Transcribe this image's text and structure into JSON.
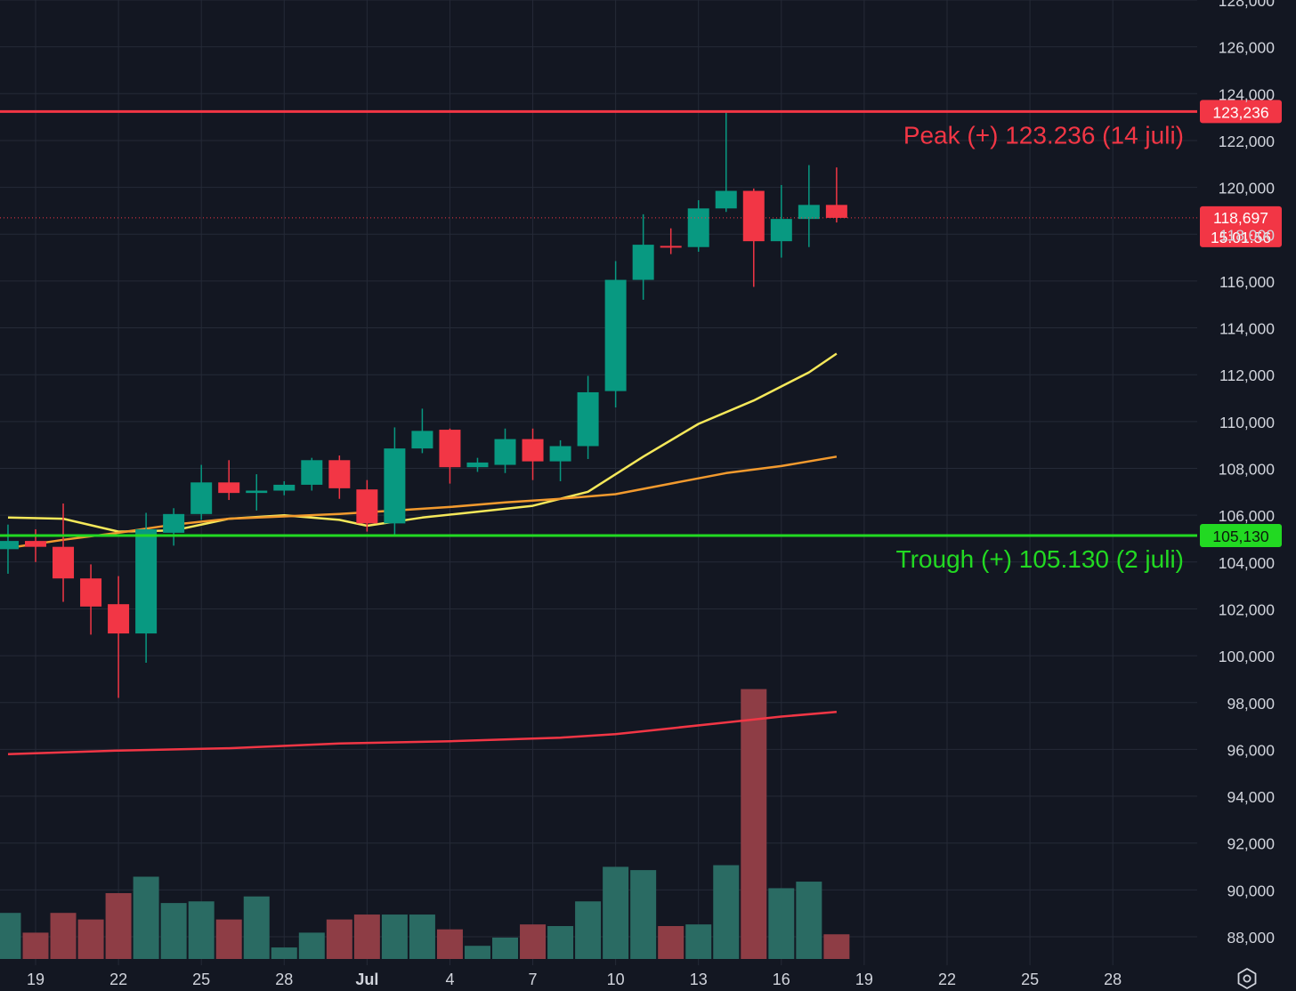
{
  "chart_data": {
    "type": "candlestick",
    "y_axis": {
      "min": 87000,
      "max": 128000,
      "ticks": [
        88000,
        90000,
        92000,
        94000,
        96000,
        98000,
        100000,
        102000,
        104000,
        106000,
        108000,
        110000,
        112000,
        114000,
        116000,
        118000,
        120000,
        122000,
        124000,
        126000,
        128000
      ],
      "tick_labels": [
        "88,000",
        "90,000",
        "92,000",
        "94,000",
        "96,000",
        "98,000",
        "100,000",
        "102,000",
        "104,000",
        "106,000",
        "108,000",
        "110,000",
        "112,000",
        "114,000",
        "116,000",
        "118,000",
        "120,000",
        "122,000",
        "124,000",
        "126,000",
        "128,000"
      ]
    },
    "x_axis": {
      "ticks": [
        {
          "date": "2025-06-19",
          "label": "19",
          "bold": false
        },
        {
          "date": "2025-06-22",
          "label": "22",
          "bold": false
        },
        {
          "date": "2025-06-25",
          "label": "25",
          "bold": false
        },
        {
          "date": "2025-06-28",
          "label": "28",
          "bold": false
        },
        {
          "date": "2025-07-01",
          "label": "Jul",
          "bold": true
        },
        {
          "date": "2025-07-04",
          "label": "4",
          "bold": false
        },
        {
          "date": "2025-07-07",
          "label": "7",
          "bold": false
        },
        {
          "date": "2025-07-10",
          "label": "10",
          "bold": false
        },
        {
          "date": "2025-07-13",
          "label": "13",
          "bold": false
        },
        {
          "date": "2025-07-16",
          "label": "16",
          "bold": false
        },
        {
          "date": "2025-07-19",
          "label": "19",
          "bold": false
        },
        {
          "date": "2025-07-22",
          "label": "22",
          "bold": false
        },
        {
          "date": "2025-07-25",
          "label": "25",
          "bold": false
        },
        {
          "date": "2025-07-28",
          "label": "28",
          "bold": false
        }
      ]
    },
    "candles": [
      {
        "date": "2025-06-18",
        "open": 104550,
        "high": 105600,
        "low": 103500,
        "close": 104900
      },
      {
        "date": "2025-06-19",
        "open": 104900,
        "high": 105400,
        "low": 104000,
        "close": 104650
      },
      {
        "date": "2025-06-20",
        "open": 104650,
        "high": 106500,
        "low": 102300,
        "close": 103300
      },
      {
        "date": "2025-06-21",
        "open": 103300,
        "high": 103900,
        "low": 100900,
        "close": 102100
      },
      {
        "date": "2025-06-22",
        "open": 102200,
        "high": 103400,
        "low": 98200,
        "close": 100950
      },
      {
        "date": "2025-06-23",
        "open": 100950,
        "high": 106100,
        "low": 99700,
        "close": 105400
      },
      {
        "date": "2025-06-24",
        "open": 105250,
        "high": 106300,
        "low": 104700,
        "close": 106050
      },
      {
        "date": "2025-06-25",
        "open": 106050,
        "high": 108150,
        "low": 105800,
        "close": 107400
      },
      {
        "date": "2025-06-26",
        "open": 107400,
        "high": 108350,
        "low": 106650,
        "close": 106950
      },
      {
        "date": "2025-06-27",
        "open": 106950,
        "high": 107750,
        "low": 106200,
        "close": 107050
      },
      {
        "date": "2025-06-28",
        "open": 107050,
        "high": 107450,
        "low": 106850,
        "close": 107300
      },
      {
        "date": "2025-06-29",
        "open": 107300,
        "high": 108450,
        "low": 107050,
        "close": 108350
      },
      {
        "date": "2025-06-30",
        "open": 108350,
        "high": 108550,
        "low": 106700,
        "close": 107150
      },
      {
        "date": "2025-07-01",
        "open": 107100,
        "high": 107500,
        "low": 105300,
        "close": 105650
      },
      {
        "date": "2025-07-02",
        "open": 105650,
        "high": 109750,
        "low": 105130,
        "close": 108850
      },
      {
        "date": "2025-07-03",
        "open": 108850,
        "high": 110550,
        "low": 108650,
        "close": 109600
      },
      {
        "date": "2025-07-04",
        "open": 109650,
        "high": 109700,
        "low": 107350,
        "close": 108050
      },
      {
        "date": "2025-07-05",
        "open": 108050,
        "high": 108450,
        "low": 107850,
        "close": 108250
      },
      {
        "date": "2025-07-06",
        "open": 108150,
        "high": 109700,
        "low": 107800,
        "close": 109250
      },
      {
        "date": "2025-07-07",
        "open": 109250,
        "high": 109700,
        "low": 107500,
        "close": 108300
      },
      {
        "date": "2025-07-08",
        "open": 108300,
        "high": 109200,
        "low": 107450,
        "close": 108950
      },
      {
        "date": "2025-07-09",
        "open": 108950,
        "high": 111950,
        "low": 108400,
        "close": 111250
      },
      {
        "date": "2025-07-10",
        "open": 111300,
        "high": 116850,
        "low": 110600,
        "close": 116050
      },
      {
        "date": "2025-07-11",
        "open": 116050,
        "high": 118850,
        "low": 115200,
        "close": 117550
      },
      {
        "date": "2025-07-12",
        "open": 117500,
        "high": 118250,
        "low": 117150,
        "close": 117450
      },
      {
        "date": "2025-07-13",
        "open": 117450,
        "high": 119450,
        "low": 117250,
        "close": 119100
      },
      {
        "date": "2025-07-14",
        "open": 119100,
        "high": 123236,
        "low": 118950,
        "close": 119850
      },
      {
        "date": "2025-07-15",
        "open": 119850,
        "high": 119950,
        "low": 115750,
        "close": 117700
      },
      {
        "date": "2025-07-16",
        "open": 117700,
        "high": 120100,
        "low": 117000,
        "close": 118650
      },
      {
        "date": "2025-07-17",
        "open": 118650,
        "high": 120950,
        "low": 117450,
        "close": 119250
      },
      {
        "date": "2025-07-18",
        "open": 119250,
        "high": 120850,
        "low": 118500,
        "close": 118697
      }
    ],
    "volume": [
      {
        "date": "2025-06-18",
        "value": 28,
        "direction": "up"
      },
      {
        "date": "2025-06-19",
        "value": 16,
        "direction": "down"
      },
      {
        "date": "2025-06-20",
        "value": 28,
        "direction": "down"
      },
      {
        "date": "2025-06-21",
        "value": 24,
        "direction": "down"
      },
      {
        "date": "2025-06-22",
        "value": 40,
        "direction": "down"
      },
      {
        "date": "2025-06-23",
        "value": 50,
        "direction": "up"
      },
      {
        "date": "2025-06-24",
        "value": 34,
        "direction": "up"
      },
      {
        "date": "2025-06-25",
        "value": 35,
        "direction": "up"
      },
      {
        "date": "2025-06-26",
        "value": 24,
        "direction": "down"
      },
      {
        "date": "2025-06-27",
        "value": 38,
        "direction": "up"
      },
      {
        "date": "2025-06-28",
        "value": 7,
        "direction": "up"
      },
      {
        "date": "2025-06-29",
        "value": 16,
        "direction": "up"
      },
      {
        "date": "2025-06-30",
        "value": 24,
        "direction": "down"
      },
      {
        "date": "2025-07-01",
        "value": 27,
        "direction": "down"
      },
      {
        "date": "2025-07-02",
        "value": 27,
        "direction": "up"
      },
      {
        "date": "2025-07-03",
        "value": 27,
        "direction": "up"
      },
      {
        "date": "2025-07-04",
        "value": 18,
        "direction": "down"
      },
      {
        "date": "2025-07-05",
        "value": 8,
        "direction": "up"
      },
      {
        "date": "2025-07-06",
        "value": 13,
        "direction": "up"
      },
      {
        "date": "2025-07-07",
        "value": 21,
        "direction": "down"
      },
      {
        "date": "2025-07-08",
        "value": 20,
        "direction": "up"
      },
      {
        "date": "2025-07-09",
        "value": 35,
        "direction": "up"
      },
      {
        "date": "2025-07-10",
        "value": 56,
        "direction": "up"
      },
      {
        "date": "2025-07-11",
        "value": 54,
        "direction": "up"
      },
      {
        "date": "2025-07-12",
        "value": 20,
        "direction": "down"
      },
      {
        "date": "2025-07-13",
        "value": 21,
        "direction": "up"
      },
      {
        "date": "2025-07-14",
        "value": 57,
        "direction": "up"
      },
      {
        "date": "2025-07-15",
        "value": 164,
        "direction": "down"
      },
      {
        "date": "2025-07-16",
        "value": 43,
        "direction": "up"
      },
      {
        "date": "2025-07-17",
        "value": 47,
        "direction": "up"
      },
      {
        "date": "2025-07-18",
        "value": 15,
        "direction": "down"
      }
    ],
    "moving_averages": [
      {
        "color": "#f5e85a",
        "points": [
          [
            "2025-06-18",
            105900
          ],
          [
            "2025-06-20",
            105850
          ],
          [
            "2025-06-22",
            105300
          ],
          [
            "2025-06-24",
            105350
          ],
          [
            "2025-06-26",
            105850
          ],
          [
            "2025-06-28",
            106000
          ],
          [
            "2025-06-30",
            105800
          ],
          [
            "2025-07-01",
            105550
          ],
          [
            "2025-07-03",
            105900
          ],
          [
            "2025-07-05",
            106150
          ],
          [
            "2025-07-07",
            106400
          ],
          [
            "2025-07-09",
            107000
          ],
          [
            "2025-07-11",
            108500
          ],
          [
            "2025-07-13",
            109900
          ],
          [
            "2025-07-15",
            110900
          ],
          [
            "2025-07-17",
            112100
          ],
          [
            "2025-07-18",
            112900
          ]
        ]
      },
      {
        "color": "#f29a2e",
        "points": [
          [
            "2025-06-18",
            104600
          ],
          [
            "2025-06-20",
            104950
          ],
          [
            "2025-06-22",
            105250
          ],
          [
            "2025-06-24",
            105600
          ],
          [
            "2025-06-26",
            105850
          ],
          [
            "2025-06-28",
            105950
          ],
          [
            "2025-06-30",
            106050
          ],
          [
            "2025-07-02",
            106200
          ],
          [
            "2025-07-04",
            106350
          ],
          [
            "2025-07-06",
            106550
          ],
          [
            "2025-07-08",
            106700
          ],
          [
            "2025-07-10",
            106900
          ],
          [
            "2025-07-12",
            107350
          ],
          [
            "2025-07-14",
            107800
          ],
          [
            "2025-07-16",
            108100
          ],
          [
            "2025-07-18",
            108500
          ]
        ]
      },
      {
        "color": "#f23645",
        "points": [
          [
            "2025-06-18",
            95800
          ],
          [
            "2025-06-22",
            95950
          ],
          [
            "2025-06-26",
            96050
          ],
          [
            "2025-06-30",
            96250
          ],
          [
            "2025-07-04",
            96350
          ],
          [
            "2025-07-08",
            96500
          ],
          [
            "2025-07-10",
            96650
          ],
          [
            "2025-07-12",
            96900
          ],
          [
            "2025-07-14",
            97150
          ],
          [
            "2025-07-16",
            97400
          ],
          [
            "2025-07-18",
            97600
          ]
        ]
      }
    ],
    "horizontal_lines": [
      {
        "value": 123236,
        "color": "#f23645",
        "label_text": "Peak (+) 123.236 (14 juli)",
        "axis_label": "123,236"
      },
      {
        "value": 105130,
        "color": "#22d922",
        "label_text": "Trough (+) 105.130 (2 juli)",
        "axis_label": "105,130"
      }
    ],
    "last_price": {
      "value": 118697,
      "label": "118,697",
      "countdown": "15:01:56",
      "color": "#f23645"
    },
    "colors": {
      "background": "#131722",
      "grid": "#252a37",
      "axis_text": "#d1d4dc",
      "up": "#089981",
      "down": "#f23645"
    }
  }
}
